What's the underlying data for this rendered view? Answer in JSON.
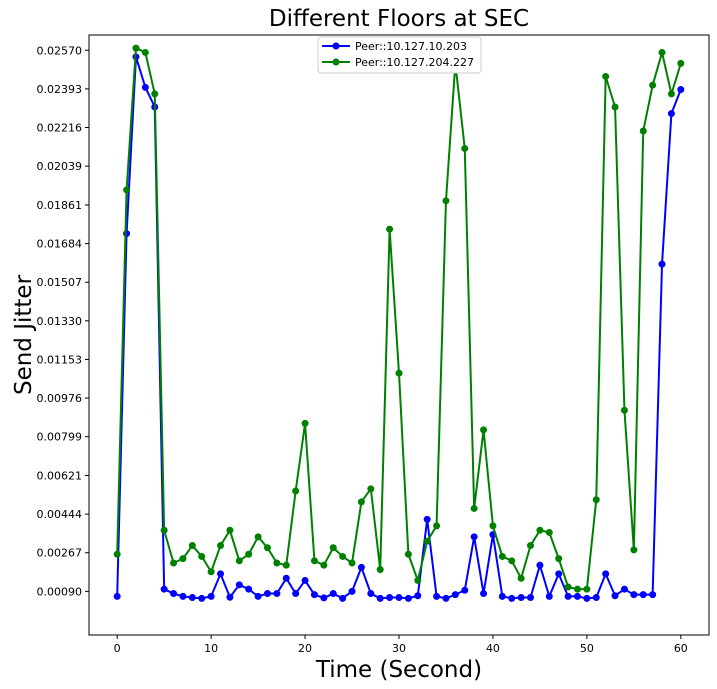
{
  "chart_data": {
    "type": "line",
    "title": "Different Floors at SEC",
    "xlabel": "Time (Second)",
    "ylabel": "Send Jitter",
    "xlim": [
      -3,
      63
    ],
    "ylim": [
      -0.0011,
      0.0264
    ],
    "xticks": [
      0,
      10,
      20,
      30,
      40,
      50,
      60
    ],
    "xtick_labels": [
      "0",
      "10",
      "20",
      "30",
      "40",
      "50",
      "60"
    ],
    "yticks": [
      0.0009,
      0.00267,
      0.00444,
      0.00621,
      0.00799,
      0.00976,
      0.01153,
      0.0133,
      0.01507,
      0.01684,
      0.01861,
      0.02039,
      0.02216,
      0.02393,
      0.0257
    ],
    "ytick_labels": [
      "0.00090",
      "0.00267",
      "0.00444",
      "0.00621",
      "0.00799",
      "0.00976",
      "0.01153",
      "0.01330",
      "0.01507",
      "0.01684",
      "0.01861",
      "0.02039",
      "0.02216",
      "0.02393",
      "0.02570"
    ],
    "grid": false,
    "legend_position": "top-center",
    "x": [
      0,
      1,
      2,
      3,
      4,
      5,
      6,
      7,
      8,
      9,
      10,
      11,
      12,
      13,
      14,
      15,
      16,
      17,
      18,
      19,
      20,
      21,
      22,
      23,
      24,
      25,
      26,
      27,
      28,
      29,
      30,
      31,
      32,
      33,
      34,
      35,
      36,
      37,
      38,
      39,
      40,
      41,
      42,
      43,
      44,
      45,
      46,
      47,
      48,
      49,
      50,
      51,
      52,
      53,
      54,
      55,
      56,
      57,
      58,
      59,
      60
    ],
    "series": [
      {
        "name": "Peer::10.127.10.203",
        "color": "#0000ff",
        "values": [
          0.00067,
          0.0173,
          0.0254,
          0.024,
          0.0231,
          0.001,
          0.0008,
          0.00067,
          0.00062,
          0.00058,
          0.00067,
          0.0017,
          0.00063,
          0.0012,
          0.001,
          0.00067,
          0.0008,
          0.0008,
          0.0015,
          0.0008,
          0.0014,
          0.00075,
          0.0006,
          0.0008,
          0.00058,
          0.0009,
          0.002,
          0.0008,
          0.00058,
          0.00062,
          0.00062,
          0.00058,
          0.0007,
          0.0042,
          0.00067,
          0.00058,
          0.00075,
          0.00095,
          0.0034,
          0.0008,
          0.0035,
          0.00067,
          0.00058,
          0.00062,
          0.00062,
          0.0021,
          0.00067,
          0.0017,
          0.00067,
          0.00067,
          0.00058,
          0.00062,
          0.0017,
          0.0007,
          0.001,
          0.00075,
          0.00075,
          0.00075,
          0.0159,
          0.0228,
          0.0239
        ]
      },
      {
        "name": "Peer::10.127.204.227",
        "color": "#008000",
        "values": [
          0.0026,
          0.0193,
          0.0258,
          0.0256,
          0.0237,
          0.0037,
          0.0022,
          0.0024,
          0.003,
          0.0025,
          0.0018,
          0.003,
          0.0037,
          0.0023,
          0.0026,
          0.0034,
          0.0029,
          0.0022,
          0.0021,
          0.0055,
          0.0086,
          0.0023,
          0.0021,
          0.0029,
          0.0025,
          0.0022,
          0.005,
          0.0056,
          0.0019,
          0.0175,
          0.0109,
          0.0026,
          0.0014,
          0.0032,
          0.0039,
          0.0188,
          0.0251,
          0.0212,
          0.0047,
          0.0083,
          0.0039,
          0.0025,
          0.0023,
          0.0015,
          0.003,
          0.0037,
          0.0036,
          0.0024,
          0.0011,
          0.001,
          0.001,
          0.0051,
          0.0245,
          0.0231,
          0.0092,
          0.0028,
          0.022,
          0.0241,
          0.0256,
          0.0237,
          0.0251
        ]
      }
    ]
  }
}
